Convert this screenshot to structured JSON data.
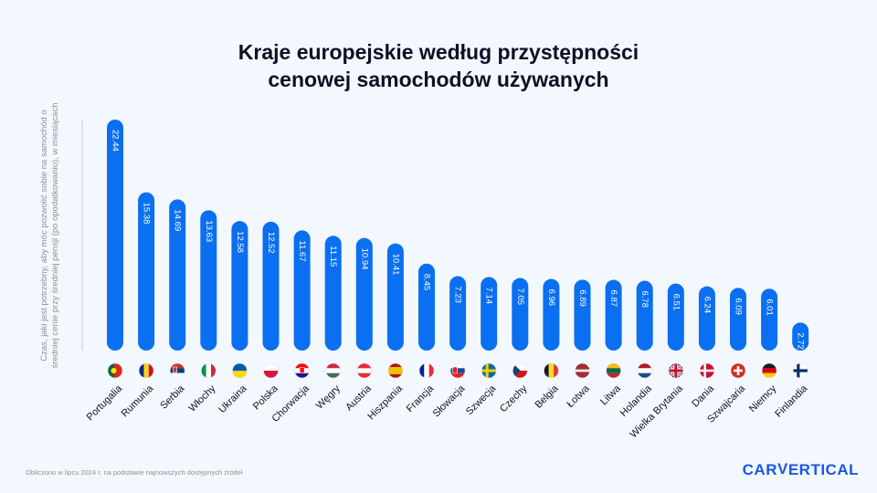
{
  "title": {
    "line1": "Kraje europejskie według przystępności",
    "line2": "cenowej samochodów używanych"
  },
  "chart_data": {
    "type": "bar",
    "title": "Kraje europejskie według przystępności cenowej samochodów używanych",
    "ylabel": "Czas, jaki jest potrzebny, aby móc pozwolić sobie na samochód o średniej cenie przy średniej pensji (po opodatkowaniu), w miesiącach",
    "xlabel": "",
    "ylim": [
      0,
      22.44
    ],
    "grid": false,
    "categories": [
      "Portugalia",
      "Rumunia",
      "Serbia",
      "Włochy",
      "Ukraina",
      "Polska",
      "Chorwacja",
      "Węgry",
      "Austria",
      "Hiszpania",
      "Francja",
      "Słowacja",
      "Szwecja",
      "Czechy",
      "Belgia",
      "Łotwa",
      "Litwa",
      "Holandia",
      "Wielka Brytania",
      "Dania",
      "Szwajcaria",
      "Niemcy",
      "Finlandia"
    ],
    "values": [
      22.44,
      15.38,
      14.69,
      13.63,
      12.58,
      12.52,
      11.67,
      11.15,
      10.94,
      10.41,
      8.45,
      7.23,
      7.14,
      7.05,
      6.96,
      6.89,
      6.87,
      6.78,
      6.51,
      6.24,
      6.09,
      6.01,
      2.72
    ],
    "value_labels": [
      "22.44",
      "15.38",
      "14.69",
      "13.63",
      "12.58",
      "12.52",
      "11.67",
      "11.15",
      "10.94",
      "10.41",
      "8.45",
      "7.23",
      "7.14",
      "7.05",
      "6.96",
      "6.89",
      "6.87",
      "6.78",
      "6.51",
      "6.24",
      "6.09",
      "6.01",
      "2.72"
    ],
    "flags": [
      "pt-flag-icon",
      "ro-flag-icon",
      "rs-flag-icon",
      "it-flag-icon",
      "ua-flag-icon",
      "pl-flag-icon",
      "hr-flag-icon",
      "hu-flag-icon",
      "at-flag-icon",
      "es-flag-icon",
      "fr-flag-icon",
      "sk-flag-icon",
      "se-flag-icon",
      "cz-flag-icon",
      "be-flag-icon",
      "lv-flag-icon",
      "lt-flag-icon",
      "nl-flag-icon",
      "gb-flag-icon",
      "dk-flag-icon",
      "ch-flag-icon",
      "de-flag-icon",
      "fi-flag-icon"
    ],
    "bar_color": "#0a6ff0",
    "label_color": "#ffffff"
  },
  "footnote": "Obliczono w lipcu 2024 r. na podstawie najnowszych dostępnych źródeł",
  "logo": {
    "part1": "CAR",
    "part2": "V",
    "part3": "ERTICAL"
  }
}
